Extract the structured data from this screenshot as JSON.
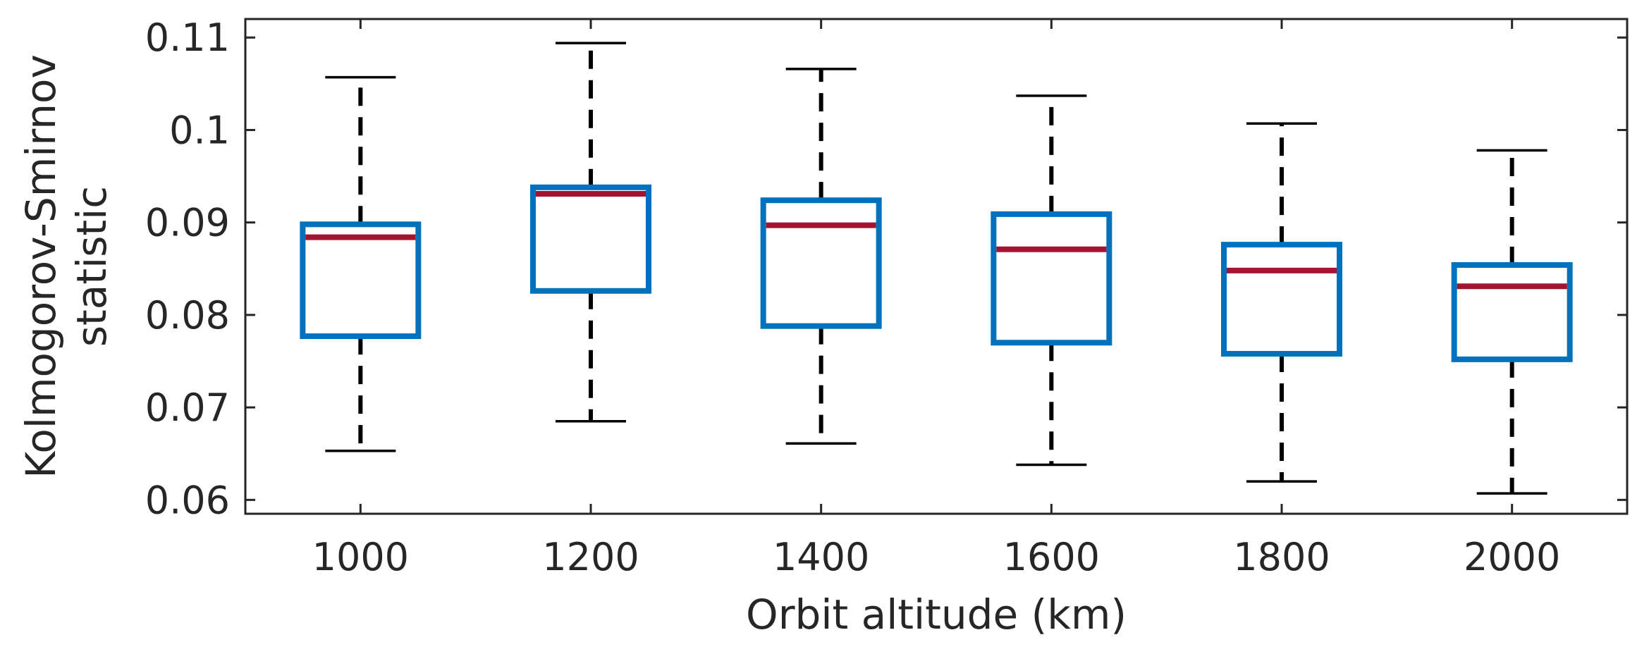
{
  "chart_data": {
    "type": "box",
    "title": "",
    "xlabel": "Orbit altitude (km)",
    "ylabel_lines": [
      "Kolmogorov-Smirnov",
      "statistic"
    ],
    "categories": [
      "1000",
      "1200",
      "1400",
      "1600",
      "1800",
      "2000"
    ],
    "x_ticks": [
      "1000",
      "1200",
      "1400",
      "1600",
      "1800",
      "2000"
    ],
    "y_ticks": [
      "0.06",
      "0.07",
      "0.08",
      "0.09",
      "0.1",
      "0.11"
    ],
    "ylim": [
      0.0585,
      0.112
    ],
    "xlim": [
      900,
      2100
    ],
    "grid": false,
    "boxes": [
      {
        "x": 1000,
        "whisker_low": 0.0653,
        "q1": 0.0777,
        "median": 0.0884,
        "q3": 0.0898,
        "whisker_high": 0.1057
      },
      {
        "x": 1200,
        "whisker_low": 0.0685,
        "q1": 0.0826,
        "median": 0.0931,
        "q3": 0.0938,
        "whisker_high": 0.1094
      },
      {
        "x": 1400,
        "whisker_low": 0.0661,
        "q1": 0.0788,
        "median": 0.0897,
        "q3": 0.0924,
        "whisker_high": 0.1066
      },
      {
        "x": 1600,
        "whisker_low": 0.0638,
        "q1": 0.077,
        "median": 0.0871,
        "q3": 0.0909,
        "whisker_high": 0.1037
      },
      {
        "x": 1800,
        "whisker_low": 0.062,
        "q1": 0.0758,
        "median": 0.0848,
        "q3": 0.0876,
        "whisker_high": 0.1007
      },
      {
        "x": 2000,
        "whisker_low": 0.0607,
        "q1": 0.0752,
        "median": 0.0831,
        "q3": 0.0854,
        "whisker_high": 0.0978
      }
    ],
    "colors": {
      "box": "#0072BD",
      "median": "#A2142F",
      "whisker": "#000000",
      "axis": "#262626"
    }
  }
}
